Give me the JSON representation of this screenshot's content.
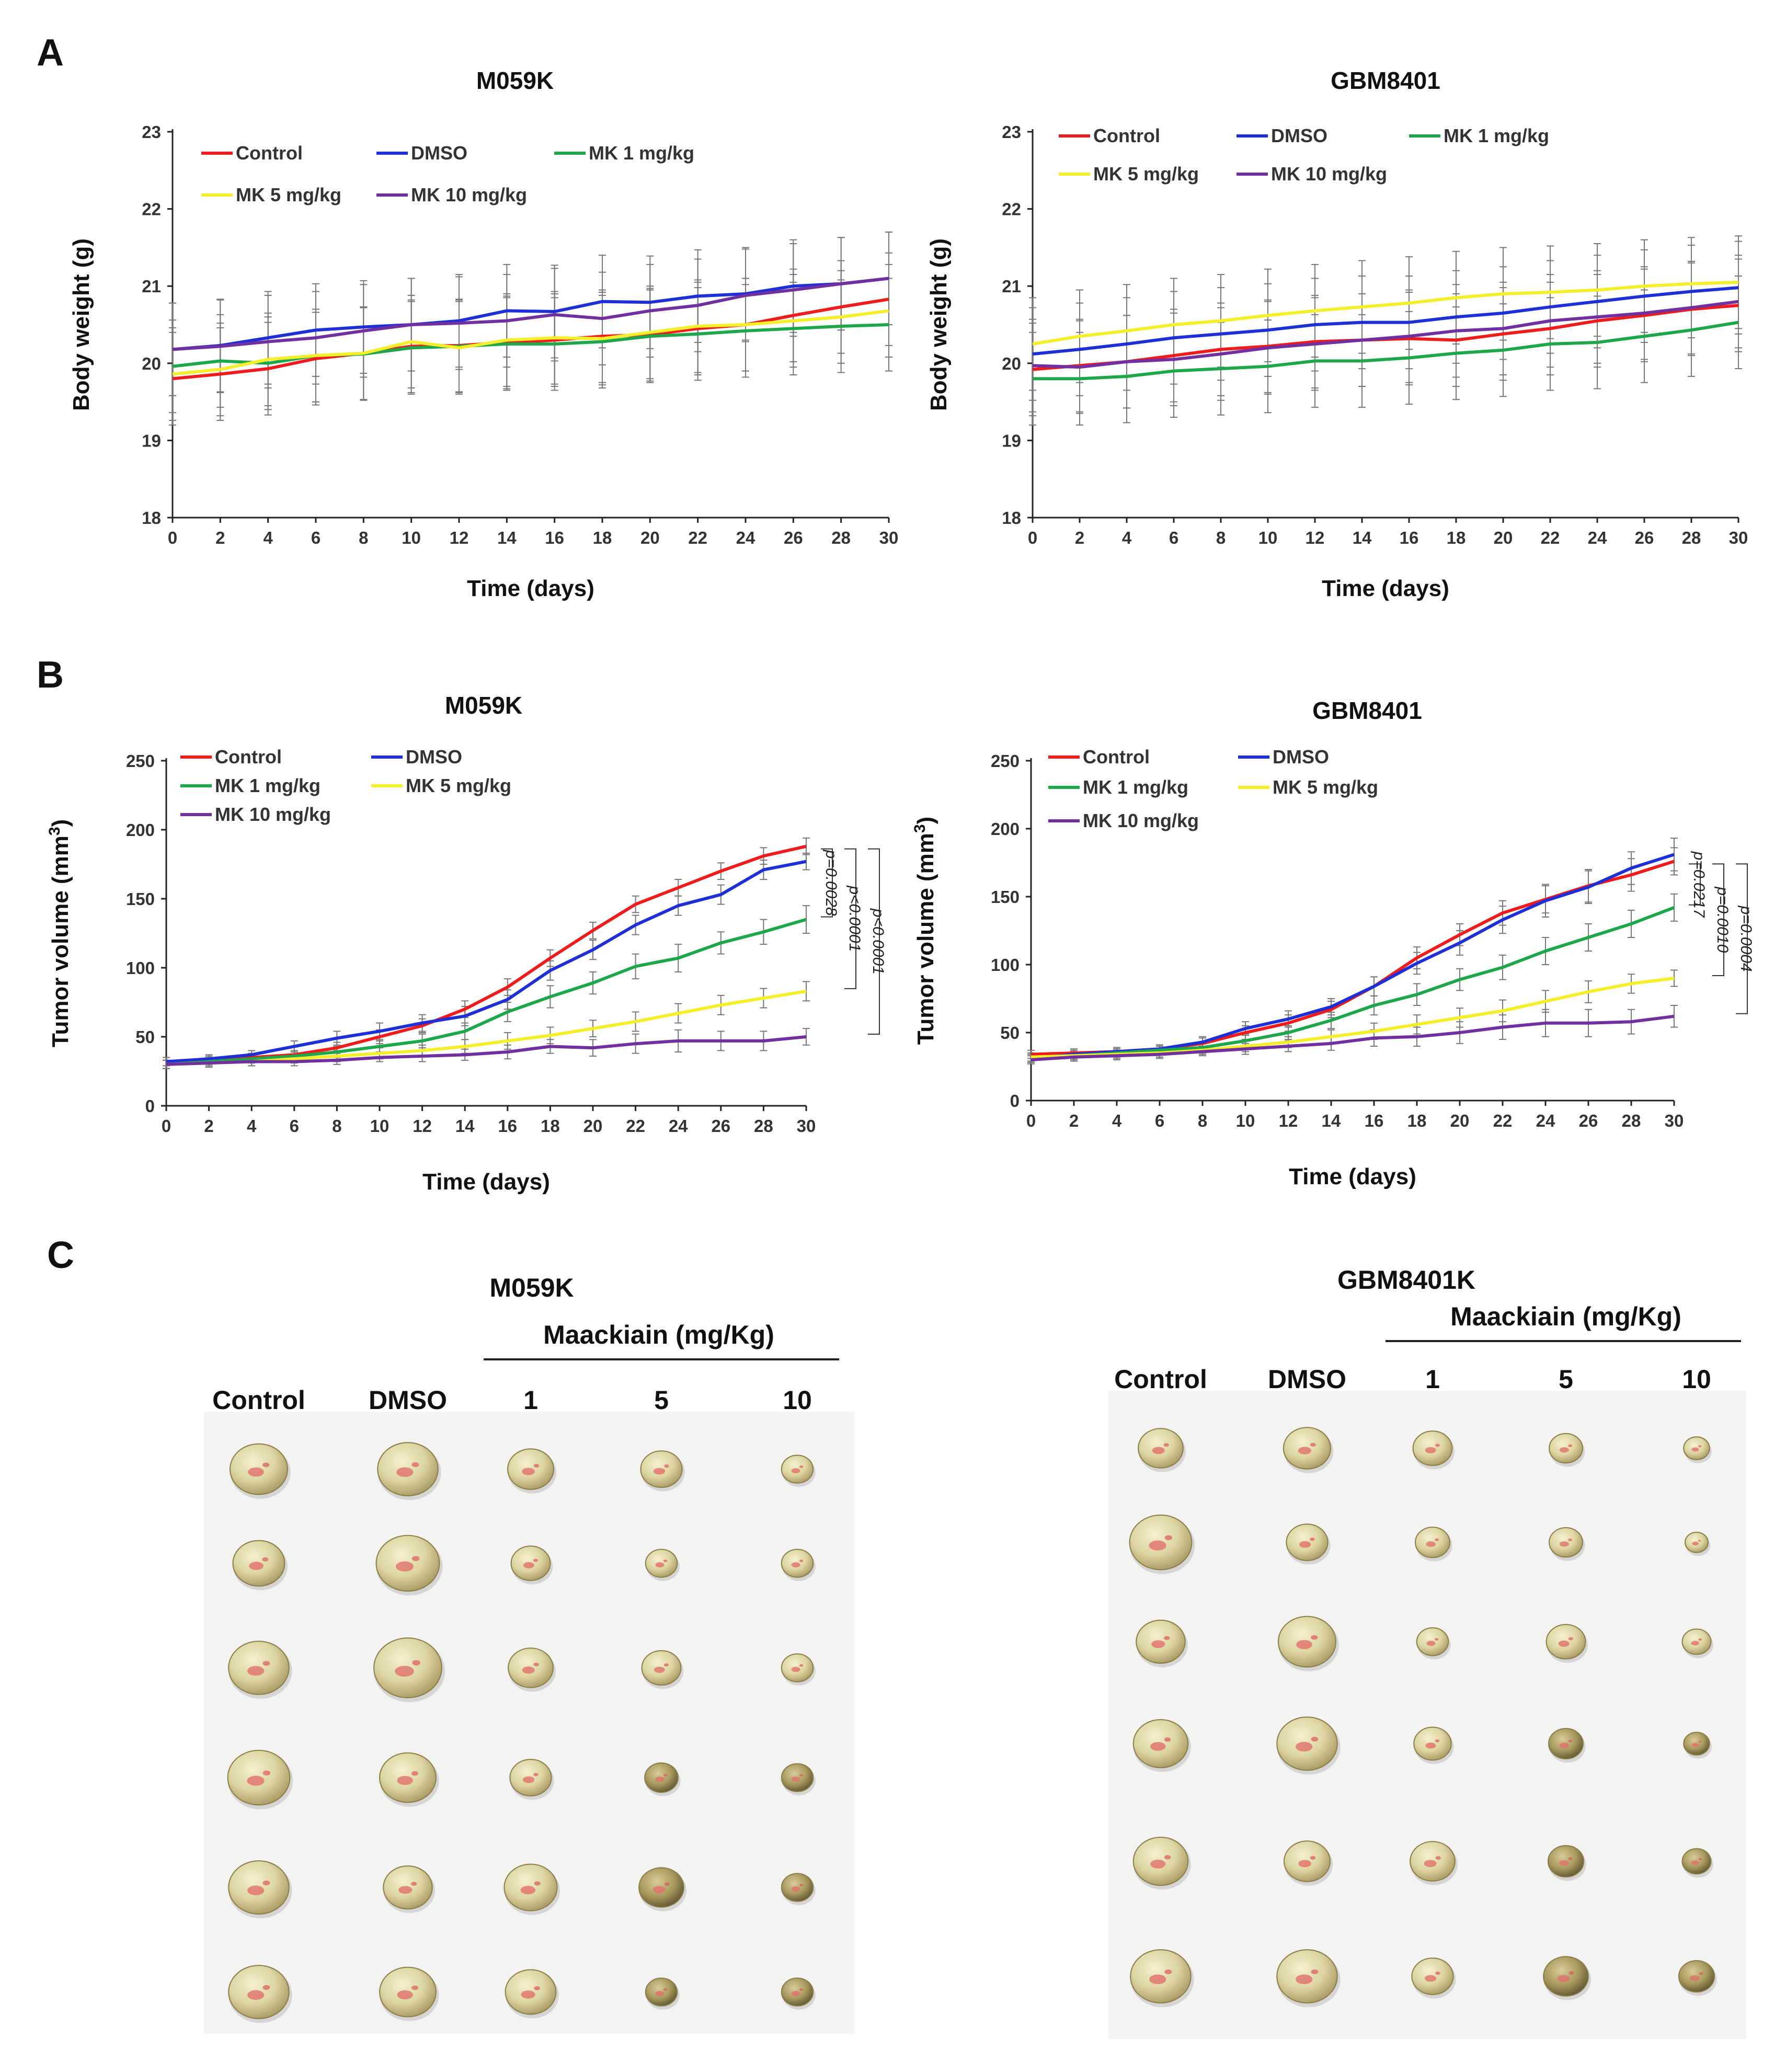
{
  "panels": {
    "A": "A",
    "B": "B",
    "C": "C"
  },
  "series_colors": {
    "Control": "#ee1c1c",
    "DMSO": "#1f2fd6",
    "MK 1 mg/kg": "#1ea64a",
    "MK 5 mg/kg": "#f5ee2a",
    "MK 10 mg/kg": "#7030a0"
  },
  "chart_data": [
    {
      "id": "A1",
      "type": "line",
      "title": "M059K",
      "xlabel": "Time (days)",
      "ylabel": "Body weight (g)",
      "xlim": [
        0,
        30
      ],
      "ylim": [
        18,
        23
      ],
      "x_ticks": [
        0,
        2,
        4,
        6,
        8,
        10,
        12,
        14,
        16,
        18,
        20,
        22,
        24,
        26,
        28,
        30
      ],
      "y_ticks": [
        18,
        19,
        20,
        21,
        22,
        23
      ],
      "x": [
        0,
        2,
        4,
        6,
        8,
        10,
        12,
        14,
        16,
        18,
        20,
        22,
        24,
        26,
        28,
        30
      ],
      "series": [
        {
          "name": "Control",
          "values": [
            19.8,
            19.86,
            19.93,
            20.06,
            20.13,
            20.22,
            20.23,
            20.27,
            20.3,
            20.35,
            20.37,
            20.45,
            20.5,
            20.62,
            20.73,
            20.83
          ],
          "err": [
            0.6,
            0.6,
            0.6,
            0.6,
            0.6,
            0.6,
            0.6,
            0.6,
            0.6,
            0.6,
            0.6,
            0.6,
            0.6,
            0.6,
            0.6,
            0.6
          ]
        },
        {
          "name": "DMSO",
          "values": [
            20.18,
            20.23,
            20.33,
            20.43,
            20.47,
            20.5,
            20.55,
            20.68,
            20.67,
            20.8,
            20.79,
            20.87,
            20.9,
            21.0,
            21.03,
            21.1
          ],
          "err": [
            0.6,
            0.6,
            0.6,
            0.6,
            0.6,
            0.6,
            0.6,
            0.6,
            0.6,
            0.6,
            0.6,
            0.6,
            0.6,
            0.6,
            0.6,
            0.6
          ]
        },
        {
          "name": "MK 1 mg/kg",
          "values": [
            19.96,
            20.03,
            20.0,
            20.1,
            20.12,
            20.2,
            20.22,
            20.25,
            20.25,
            20.28,
            20.35,
            20.38,
            20.42,
            20.45,
            20.48,
            20.5
          ],
          "err": [
            0.6,
            0.6,
            0.6,
            0.6,
            0.6,
            0.6,
            0.6,
            0.6,
            0.6,
            0.6,
            0.6,
            0.6,
            0.6,
            0.6,
            0.6,
            0.6
          ]
        },
        {
          "name": "MK 5 mg/kg",
          "values": [
            19.86,
            19.92,
            20.05,
            20.1,
            20.13,
            20.28,
            20.2,
            20.3,
            20.33,
            20.32,
            20.4,
            20.48,
            20.5,
            20.55,
            20.6,
            20.68
          ],
          "err": [
            0.6,
            0.6,
            0.6,
            0.6,
            0.6,
            0.6,
            0.6,
            0.6,
            0.6,
            0.6,
            0.6,
            0.6,
            0.6,
            0.6,
            0.6,
            0.6
          ]
        },
        {
          "name": "MK 10 mg/kg",
          "values": [
            20.18,
            20.22,
            20.28,
            20.33,
            20.42,
            20.5,
            20.52,
            20.55,
            20.63,
            20.58,
            20.68,
            20.75,
            20.88,
            20.95,
            21.03,
            21.1
          ],
          "err": [
            0.6,
            0.6,
            0.6,
            0.6,
            0.6,
            0.6,
            0.6,
            0.6,
            0.6,
            0.6,
            0.6,
            0.6,
            0.6,
            0.6,
            0.6,
            0.6
          ]
        }
      ]
    },
    {
      "id": "A2",
      "type": "line",
      "title": "GBM8401",
      "xlabel": "Time (days)",
      "ylabel": "Body weight (g)",
      "xlim": [
        0,
        30
      ],
      "ylim": [
        18,
        23
      ],
      "x_ticks": [
        0,
        2,
        4,
        6,
        8,
        10,
        12,
        14,
        16,
        18,
        20,
        22,
        24,
        26,
        28,
        30
      ],
      "y_ticks": [
        18,
        19,
        20,
        21,
        22,
        23
      ],
      "x": [
        0,
        2,
        4,
        6,
        8,
        10,
        12,
        14,
        16,
        18,
        20,
        22,
        24,
        26,
        28,
        30
      ],
      "series": [
        {
          "name": "Control",
          "values": [
            19.92,
            19.97,
            20.02,
            20.1,
            20.18,
            20.22,
            20.28,
            20.3,
            20.32,
            20.3,
            20.38,
            20.45,
            20.55,
            20.62,
            20.7,
            20.75
          ],
          "err": [
            0.6,
            0.6,
            0.6,
            0.6,
            0.6,
            0.6,
            0.6,
            0.6,
            0.6,
            0.6,
            0.6,
            0.6,
            0.6,
            0.6,
            0.6,
            0.6
          ]
        },
        {
          "name": "DMSO",
          "values": [
            20.12,
            20.18,
            20.25,
            20.33,
            20.38,
            20.43,
            20.5,
            20.53,
            20.53,
            20.6,
            20.65,
            20.73,
            20.8,
            20.87,
            20.93,
            20.98
          ],
          "err": [
            0.6,
            0.6,
            0.6,
            0.6,
            0.6,
            0.6,
            0.6,
            0.6,
            0.6,
            0.6,
            0.6,
            0.6,
            0.6,
            0.6,
            0.6,
            0.6
          ]
        },
        {
          "name": "MK 1 mg/kg",
          "values": [
            19.8,
            19.8,
            19.83,
            19.9,
            19.93,
            19.96,
            20.03,
            20.03,
            20.07,
            20.13,
            20.17,
            20.25,
            20.27,
            20.35,
            20.43,
            20.53
          ],
          "err": [
            0.6,
            0.6,
            0.6,
            0.6,
            0.6,
            0.6,
            0.6,
            0.6,
            0.6,
            0.6,
            0.6,
            0.6,
            0.6,
            0.6,
            0.6,
            0.6
          ]
        },
        {
          "name": "MK 5 mg/kg",
          "values": [
            20.25,
            20.35,
            20.42,
            20.5,
            20.55,
            20.62,
            20.68,
            20.73,
            20.78,
            20.85,
            20.9,
            20.92,
            20.95,
            21.0,
            21.03,
            21.05
          ],
          "err": [
            0.6,
            0.6,
            0.6,
            0.6,
            0.6,
            0.6,
            0.6,
            0.6,
            0.6,
            0.6,
            0.6,
            0.6,
            0.6,
            0.6,
            0.6,
            0.6
          ]
        },
        {
          "name": "MK 10 mg/kg",
          "values": [
            19.97,
            19.95,
            20.02,
            20.05,
            20.12,
            20.2,
            20.25,
            20.3,
            20.35,
            20.42,
            20.45,
            20.55,
            20.6,
            20.65,
            20.72,
            20.8
          ],
          "err": [
            0.6,
            0.6,
            0.6,
            0.6,
            0.6,
            0.6,
            0.6,
            0.6,
            0.6,
            0.6,
            0.6,
            0.6,
            0.6,
            0.6,
            0.6,
            0.6
          ]
        }
      ]
    },
    {
      "id": "B1",
      "type": "line",
      "title": "M059K",
      "xlabel": "Time (days)",
      "ylabel_main": "Tumor volume (mm",
      "ylabel_sup": "3",
      "ylabel_close": ")",
      "xlim": [
        0,
        30
      ],
      "ylim": [
        0,
        250
      ],
      "x_ticks": [
        0,
        2,
        4,
        6,
        8,
        10,
        12,
        14,
        16,
        18,
        20,
        22,
        24,
        26,
        28,
        30
      ],
      "y_ticks": [
        0,
        50,
        100,
        150,
        200,
        250
      ],
      "x": [
        0,
        2,
        4,
        6,
        8,
        10,
        12,
        14,
        16,
        18,
        20,
        22,
        24,
        26,
        28,
        30
      ],
      "series": [
        {
          "name": "Control",
          "values": [
            32,
            33,
            35,
            37,
            42,
            50,
            58,
            70,
            86,
            107,
            127,
            146,
            158,
            170,
            181,
            188
          ],
          "err": [
            3,
            3,
            3,
            3,
            4,
            5,
            5,
            6,
            6,
            6,
            6,
            6,
            6,
            6,
            6,
            6
          ]
        },
        {
          "name": "DMSO",
          "values": [
            32,
            34,
            37,
            43,
            49,
            54,
            60,
            65,
            77,
            98,
            113,
            131,
            145,
            153,
            171,
            177
          ],
          "err": [
            3,
            3,
            3,
            4,
            5,
            6,
            6,
            7,
            7,
            7,
            7,
            7,
            7,
            7,
            7,
            6
          ]
        },
        {
          "name": "MK 1 mg/kg",
          "values": [
            30,
            32,
            34,
            36,
            39,
            43,
            47,
            54,
            68,
            79,
            89,
            101,
            107,
            118,
            126,
            135
          ],
          "err": [
            3,
            3,
            3,
            3,
            4,
            4,
            5,
            6,
            7,
            8,
            8,
            9,
            10,
            8,
            9,
            10
          ]
        },
        {
          "name": "MK 5 mg/kg",
          "values": [
            30,
            31,
            32,
            34,
            36,
            38,
            40,
            43,
            47,
            51,
            56,
            61,
            67,
            73,
            78,
            83
          ],
          "err": [
            3,
            3,
            3,
            3,
            4,
            4,
            4,
            5,
            6,
            6,
            6,
            7,
            7,
            7,
            7,
            7
          ]
        },
        {
          "name": "MK 10 mg/kg",
          "values": [
            30,
            31,
            32,
            32,
            33,
            35,
            36,
            37,
            39,
            43,
            42,
            45,
            47,
            47,
            47,
            50
          ],
          "err": [
            3,
            3,
            3,
            3,
            3,
            3,
            4,
            4,
            5,
            5,
            6,
            7,
            8,
            7,
            7,
            6
          ]
        }
      ],
      "pvalues": [
        "p=0.0028",
        "p<0.0001",
        "p<0.0001"
      ]
    },
    {
      "id": "B2",
      "type": "line",
      "title": "GBM8401",
      "xlabel": "Time (days)",
      "ylabel_main": "Tumor volume (mm",
      "ylabel_sup": "3",
      "ylabel_close": ")",
      "xlim": [
        0,
        30
      ],
      "ylim": [
        0,
        250
      ],
      "x_ticks": [
        0,
        2,
        4,
        6,
        8,
        10,
        12,
        14,
        16,
        18,
        20,
        22,
        24,
        26,
        28,
        30
      ],
      "y_ticks": [
        0,
        50,
        100,
        150,
        200,
        250
      ],
      "x": [
        0,
        2,
        4,
        6,
        8,
        10,
        12,
        14,
        16,
        18,
        20,
        22,
        24,
        26,
        28,
        30
      ],
      "series": [
        {
          "name": "Control",
          "values": [
            34,
            35,
            36,
            38,
            42,
            50,
            57,
            67,
            84,
            105,
            122,
            138,
            148,
            158,
            166,
            176
          ],
          "err": [
            3,
            3,
            3,
            3,
            4,
            5,
            6,
            6,
            7,
            8,
            8,
            9,
            10,
            12,
            12,
            10
          ]
        },
        {
          "name": "DMSO",
          "values": [
            31,
            34,
            36,
            38,
            43,
            53,
            60,
            69,
            84,
            101,
            116,
            133,
            147,
            157,
            171,
            181
          ],
          "err": [
            3,
            3,
            3,
            3,
            4,
            5,
            6,
            6,
            7,
            8,
            9,
            10,
            12,
            12,
            12,
            12
          ]
        },
        {
          "name": "MK 1 mg/kg",
          "values": [
            32,
            33,
            35,
            37,
            39,
            44,
            50,
            59,
            70,
            78,
            89,
            98,
            110,
            120,
            130,
            142
          ],
          "err": [
            3,
            3,
            3,
            3,
            4,
            5,
            5,
            6,
            7,
            8,
            8,
            9,
            10,
            10,
            10,
            10
          ]
        },
        {
          "name": "MK 5 mg/kg",
          "values": [
            32,
            33,
            34,
            35,
            37,
            40,
            43,
            47,
            51,
            56,
            61,
            66,
            73,
            80,
            86,
            90
          ],
          "err": [
            3,
            3,
            3,
            3,
            3,
            4,
            4,
            5,
            6,
            7,
            7,
            8,
            8,
            8,
            7,
            6
          ]
        },
        {
          "name": "MK 10 mg/kg",
          "values": [
            30,
            32,
            33,
            34,
            36,
            38,
            40,
            42,
            46,
            47,
            50,
            54,
            57,
            57,
            58,
            62
          ],
          "err": [
            3,
            3,
            3,
            3,
            3,
            4,
            4,
            5,
            6,
            7,
            8,
            9,
            10,
            10,
            9,
            8
          ]
        }
      ],
      "pvalues": [
        "p=0.0217",
        "p=0.0010",
        "p=0.0004"
      ]
    }
  ],
  "photos": [
    {
      "id": "C1",
      "title": "M059K",
      "treatment_label": "Maackiain (mg/Kg)",
      "columns": [
        "Control",
        "DMSO",
        "1",
        "5",
        "10"
      ],
      "tumor_sizes": [
        [
          1.0,
          1.05,
          0.8,
          0.72,
          0.55
        ],
        [
          0.9,
          1.1,
          0.68,
          0.55,
          0.55
        ],
        [
          1.05,
          1.18,
          0.78,
          0.68,
          0.55
        ],
        [
          1.08,
          0.98,
          0.72,
          0.58,
          0.55
        ],
        [
          1.05,
          0.85,
          0.92,
          0.78,
          0.55
        ],
        [
          1.05,
          0.98,
          0.88,
          0.55,
          0.55
        ]
      ]
    },
    {
      "id": "C2",
      "title": "GBM8401K",
      "treatment_label": "Maackiain (mg/Kg)",
      "columns": [
        "Control",
        "DMSO",
        "1",
        "5",
        "10"
      ],
      "tumor_sizes": [
        [
          0.78,
          0.82,
          0.68,
          0.58,
          0.45
        ],
        [
          1.08,
          0.72,
          0.6,
          0.58,
          0.4
        ],
        [
          0.85,
          1.0,
          0.55,
          0.68,
          0.5
        ],
        [
          0.95,
          1.05,
          0.65,
          0.6,
          0.45
        ],
        [
          0.95,
          0.8,
          0.78,
          0.62,
          0.5
        ],
        [
          1.05,
          1.05,
          0.72,
          0.78,
          0.62
        ]
      ]
    }
  ]
}
